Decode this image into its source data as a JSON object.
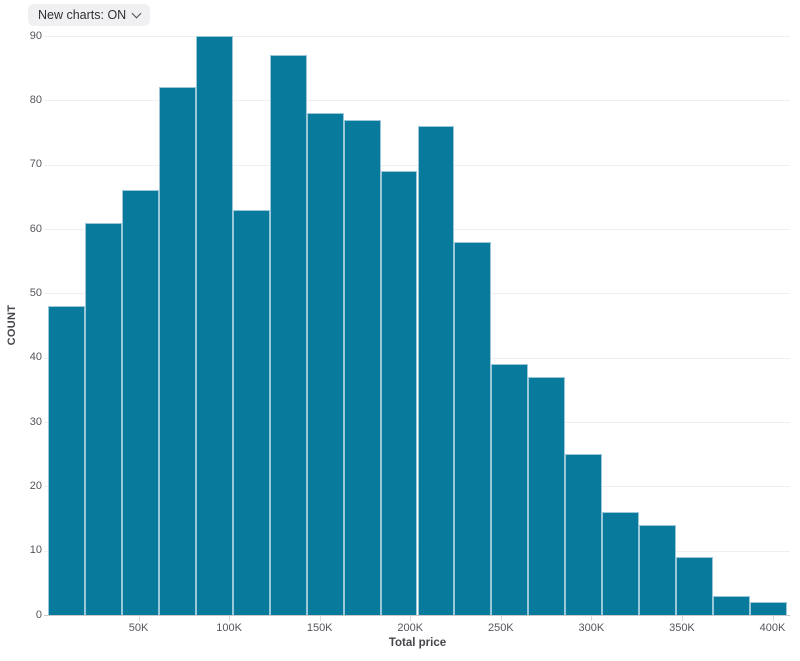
{
  "controls": {
    "new_charts_label": "New charts: ON"
  },
  "chart_data": {
    "type": "bar",
    "subtype": "histogram",
    "title": "",
    "xlabel": "Total price",
    "ylabel": "COUNT",
    "bins": [
      "0–20K",
      "20K–40K",
      "40K–60K",
      "60K–80K",
      "80K–100K",
      "100K–120K",
      "120K–140K",
      "140K–160K",
      "160K–180K",
      "180K–200K",
      "200K–220K",
      "220K–240K",
      "240K–260K",
      "260K–280K",
      "280K–300K",
      "300K–320K",
      "320K–340K",
      "340K–360K",
      "360K–380K",
      "380K–400K"
    ],
    "values": [
      48,
      61,
      66,
      82,
      90,
      63,
      87,
      78,
      77,
      69,
      76,
      58,
      39,
      37,
      25,
      16,
      14,
      9,
      3,
      2
    ],
    "x_ticks": [
      {
        "value": 50000,
        "label": "50K"
      },
      {
        "value": 100000,
        "label": "100K"
      },
      {
        "value": 150000,
        "label": "150K"
      },
      {
        "value": 200000,
        "label": "200K"
      },
      {
        "value": 250000,
        "label": "250K"
      },
      {
        "value": 300000,
        "label": "300K"
      },
      {
        "value": 350000,
        "label": "350K"
      },
      {
        "value": 400000,
        "label": "400K"
      }
    ],
    "y_ticks": [
      0,
      10,
      20,
      30,
      40,
      50,
      60,
      70,
      80,
      90
    ],
    "ylim": [
      0,
      90
    ],
    "xlim": [
      0,
      408000
    ],
    "grid": true,
    "legend": "none",
    "colors": {
      "bar_fill": "#087a9c",
      "bar_stroke": "#9cc7d9",
      "gridline": "#efeff0",
      "axis_line": "#c9c9cc",
      "tick_label": "#55555c",
      "axis_title": "#45454c"
    }
  }
}
